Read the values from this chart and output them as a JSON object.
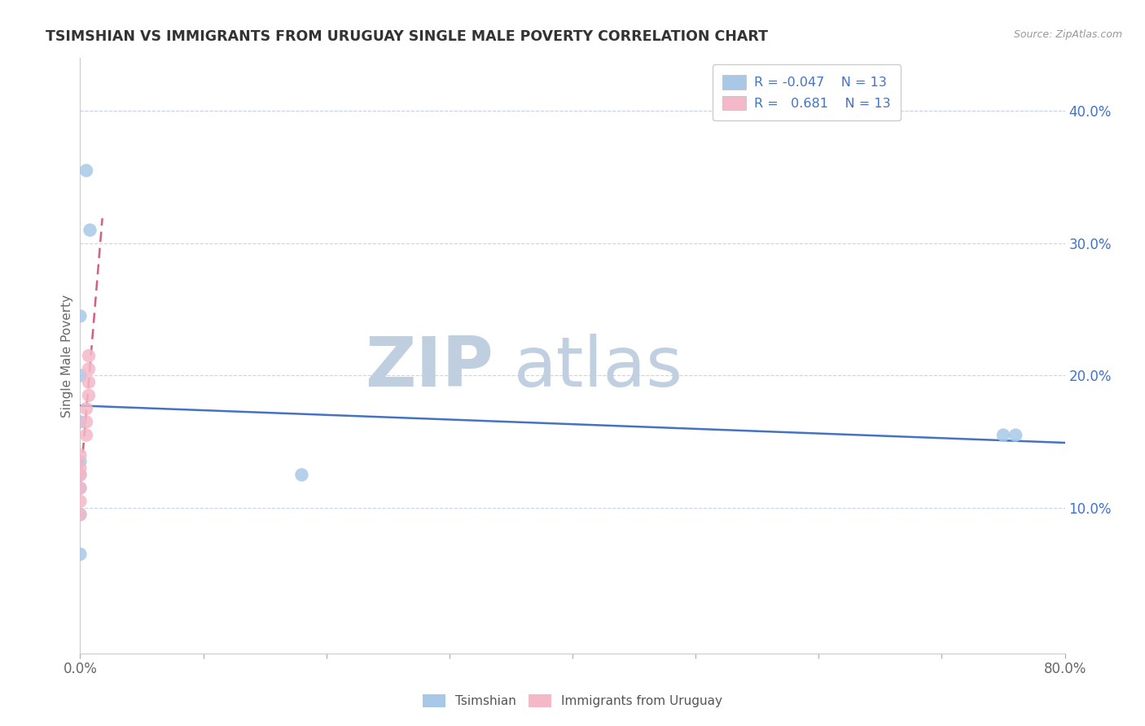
{
  "title": "TSIMSHIAN VS IMMIGRANTS FROM URUGUAY SINGLE MALE POVERTY CORRELATION CHART",
  "source": "Source: ZipAtlas.com",
  "ylabel": "Single Male Poverty",
  "legend_labels": [
    "Tsimshian",
    "Immigrants from Uruguay"
  ],
  "R_tsimshian": -0.047,
  "N_tsimshian": 13,
  "R_uruguay": 0.681,
  "N_uruguay": 13,
  "tsimshian_x": [
    0.005,
    0.008,
    0.0,
    0.0,
    0.0,
    0.0,
    0.0,
    0.0,
    0.0,
    0.0,
    0.18,
    0.75,
    0.76
  ],
  "tsimshian_y": [
    0.355,
    0.31,
    0.245,
    0.2,
    0.165,
    0.135,
    0.125,
    0.115,
    0.095,
    0.065,
    0.125,
    0.155,
    0.155
  ],
  "uruguay_x": [
    0.0,
    0.0,
    0.0,
    0.0,
    0.0,
    0.0,
    0.005,
    0.005,
    0.005,
    0.007,
    0.007,
    0.007,
    0.007
  ],
  "uruguay_y": [
    0.095,
    0.105,
    0.115,
    0.125,
    0.13,
    0.14,
    0.155,
    0.165,
    0.175,
    0.185,
    0.195,
    0.205,
    0.215
  ],
  "xlim": [
    0.0,
    0.8
  ],
  "ylim": [
    -0.01,
    0.44
  ],
  "yticks_right": [
    0.1,
    0.2,
    0.3,
    0.4
  ],
  "ytick_labels_right": [
    "10.0%",
    "20.0%",
    "30.0%",
    "40.0%"
  ],
  "tsimshian_color": "#a8c8e8",
  "uruguay_color": "#f4b8c8",
  "trend_tsimshian_color": "#4472c4",
  "trend_uruguay_color": "#d46080",
  "background_color": "#ffffff",
  "grid_color": "#c8d4e8",
  "watermark_zip_color": "#c0cfe0",
  "watermark_atlas_color": "#c0d0e0"
}
